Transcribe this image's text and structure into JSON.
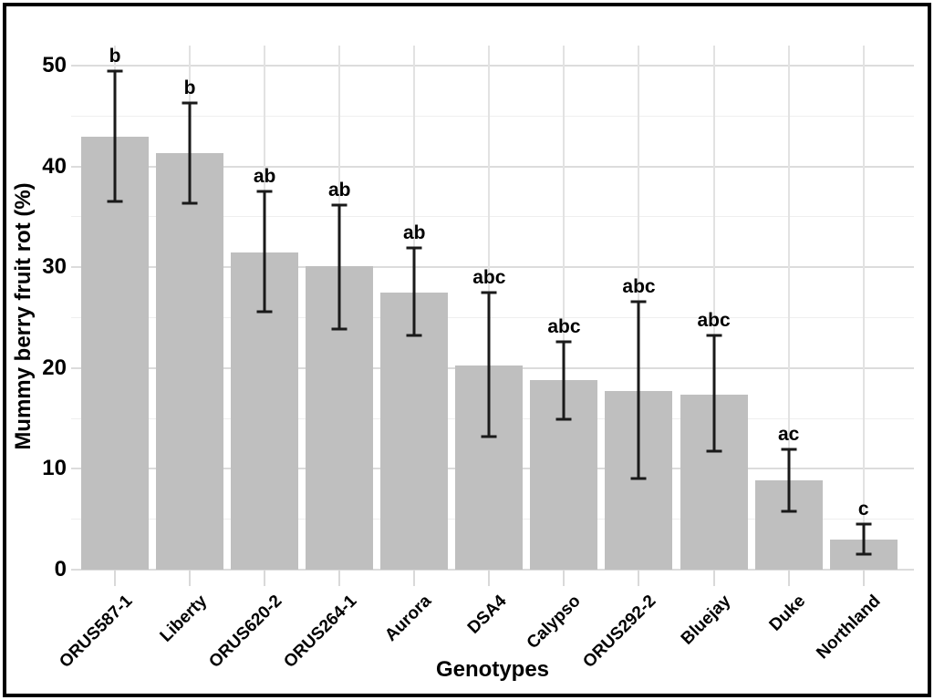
{
  "figure": {
    "background": "#ffffff",
    "frame_color": "#000000"
  },
  "chart_data": {
    "type": "bar",
    "title": "",
    "xlabel": "Genotypes",
    "ylabel": "Mummy berry fruit rot (%)",
    "legend": "none",
    "grid": "light gray major+minor horizontal, major vertical at category centers",
    "ylim": [
      0,
      52
    ],
    "yticks": [
      "0",
      "10",
      "20",
      "30",
      "40",
      "50"
    ],
    "ytick_values": [
      0,
      10,
      20,
      30,
      40,
      50
    ],
    "yminor_values": [
      5,
      15,
      25,
      35,
      45
    ],
    "categories": [
      "ORUS587-1",
      "Liberty",
      "ORUS620-2",
      "ORUS264-1",
      "Aurora",
      "DSA4",
      "Calypso",
      "ORUS292-2",
      "Bluejay",
      "Duke",
      "Northland"
    ],
    "series": [
      {
        "name": "Mummy berry fruit rot (%)",
        "values": [
          43.0,
          41.3,
          31.5,
          30.1,
          27.5,
          20.3,
          18.8,
          17.7,
          17.4,
          8.9,
          3.0
        ],
        "error_low": [
          36.5,
          36.4,
          25.6,
          23.9,
          23.2,
          13.2,
          14.9,
          9.0,
          11.8,
          5.8,
          1.5
        ],
        "error_high": [
          49.5,
          46.3,
          37.5,
          36.2,
          31.9,
          27.5,
          22.6,
          26.6,
          23.2,
          11.9,
          4.5
        ],
        "sig_letters": [
          "b",
          "b",
          "ab",
          "ab",
          "ab",
          "abc",
          "abc",
          "abc",
          "abc",
          "ac",
          "c"
        ]
      }
    ],
    "bar_color": "#bfbfbf",
    "error_color": "#1a1a1a",
    "grid_major_color": "#dcdcdc",
    "grid_minor_color": "#efefef"
  }
}
